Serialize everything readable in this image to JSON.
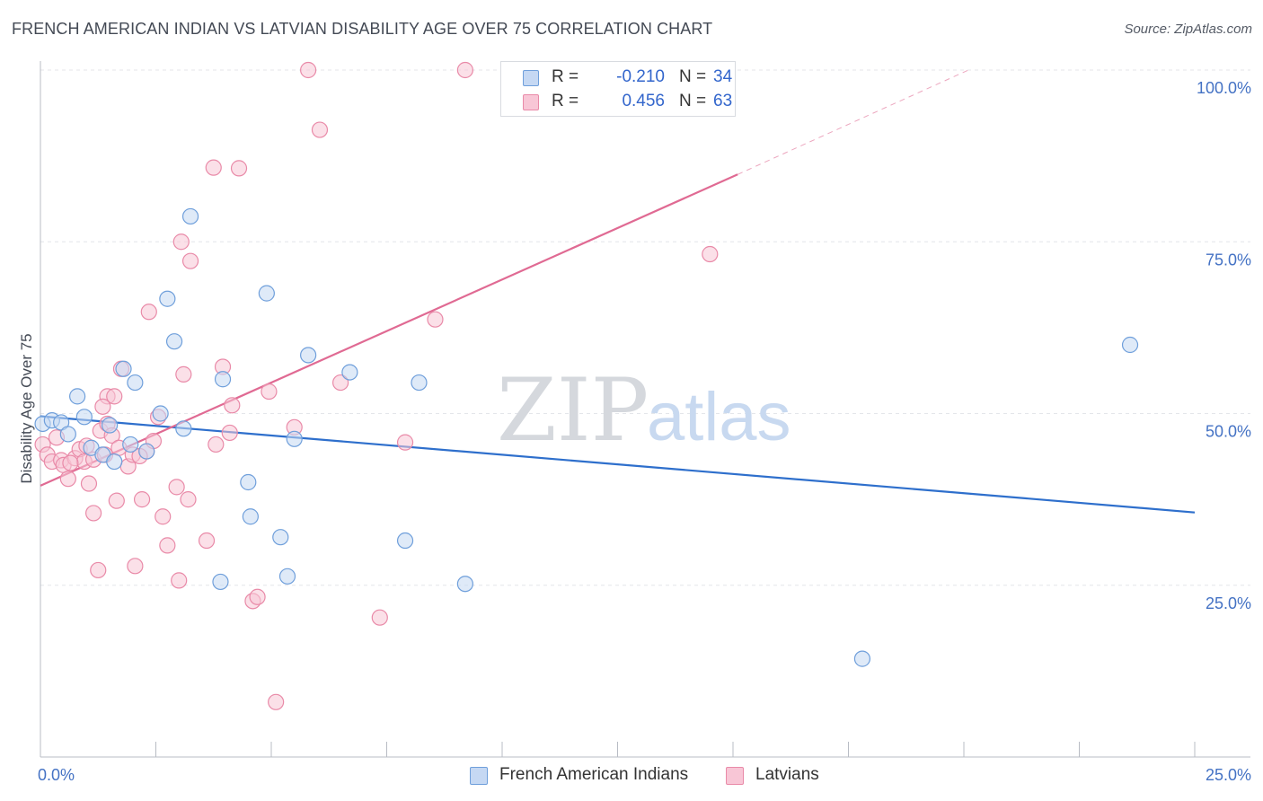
{
  "title": "FRENCH AMERICAN INDIAN VS LATVIAN DISABILITY AGE OVER 75 CORRELATION CHART",
  "source": "Source: ZipAtlas.com",
  "watermark": {
    "zip": "ZIP",
    "atlas": "atlas"
  },
  "colors": {
    "blue_fill": "#c5d8f3",
    "blue_stroke": "#6f9fdb",
    "blue_line": "#2e6fcc",
    "pink_fill": "#f8c6d6",
    "pink_stroke": "#e98aa8",
    "pink_line": "#e06a93",
    "grid": "#e4e6ea",
    "tick_text": "#4472c4"
  },
  "legend": {
    "series": [
      {
        "r_label": "R =",
        "r_value": "-0.210",
        "n_label": "N =",
        "n_value": "34"
      },
      {
        "r_label": "R =",
        "r_value": "0.456",
        "n_label": "N =",
        "n_value": "63"
      }
    ]
  },
  "chart_data": {
    "type": "scatter",
    "title": "FRENCH AMERICAN INDIAN VS LATVIAN DISABILITY AGE OVER 75 CORRELATION CHART",
    "xlabel": "",
    "ylabel": "Disability Age Over 75",
    "xlim": [
      0,
      25
    ],
    "ylim": [
      0,
      100
    ],
    "x_tick_labels": [
      "0.0%",
      "25.0%"
    ],
    "y_ticks": [
      25,
      50,
      75,
      100
    ],
    "y_tick_labels": [
      "25.0%",
      "50.0%",
      "75.0%",
      "100.0%"
    ],
    "grid": true,
    "legend_placement": "bottom",
    "series": [
      {
        "name": "French American Indians",
        "color": "#6f9fdb",
        "trend": {
          "x": [
            0,
            25
          ],
          "y": [
            49.6,
            35.6
          ],
          "style": "solid"
        },
        "points": [
          [
            0.05,
            48.5
          ],
          [
            0.25,
            49.0
          ],
          [
            0.45,
            48.7
          ],
          [
            0.6,
            47.0
          ],
          [
            0.8,
            52.5
          ],
          [
            0.95,
            49.5
          ],
          [
            1.1,
            45.0
          ],
          [
            1.35,
            44.0
          ],
          [
            1.5,
            48.3
          ],
          [
            1.6,
            43.0
          ],
          [
            1.8,
            56.5
          ],
          [
            2.05,
            54.5
          ],
          [
            2.3,
            44.5
          ],
          [
            2.6,
            50.0
          ],
          [
            2.75,
            66.7
          ],
          [
            2.9,
            60.5
          ],
          [
            3.1,
            47.8
          ],
          [
            3.25,
            78.7
          ],
          [
            3.9,
            25.5
          ],
          [
            3.95,
            55.0
          ],
          [
            4.5,
            40.0
          ],
          [
            4.55,
            35.0
          ],
          [
            4.9,
            67.5
          ],
          [
            5.2,
            32.0
          ],
          [
            5.35,
            26.3
          ],
          [
            5.5,
            46.3
          ],
          [
            5.8,
            58.5
          ],
          [
            6.7,
            56.0
          ],
          [
            7.9,
            31.5
          ],
          [
            8.2,
            54.5
          ],
          [
            9.2,
            25.2
          ],
          [
            17.8,
            14.3
          ],
          [
            23.6,
            60.0
          ],
          [
            1.95,
            45.5
          ]
        ]
      },
      {
        "name": "Latvians",
        "color": "#e98aa8",
        "trend": {
          "x": [
            0,
            15.1
          ],
          "y": [
            39.5,
            84.8
          ],
          "style": "solid",
          "extension": {
            "x": [
              15.1,
              20.1
            ],
            "y": [
              84.8,
              100.0
            ],
            "style": "dashed"
          }
        },
        "points": [
          [
            0.05,
            45.5
          ],
          [
            0.15,
            44.0
          ],
          [
            0.25,
            43.0
          ],
          [
            0.35,
            46.5
          ],
          [
            0.45,
            43.2
          ],
          [
            0.5,
            42.5
          ],
          [
            0.6,
            40.5
          ],
          [
            0.75,
            43.5
          ],
          [
            0.85,
            44.8
          ],
          [
            0.95,
            43.0
          ],
          [
            1.0,
            45.3
          ],
          [
            1.05,
            39.8
          ],
          [
            1.15,
            43.3
          ],
          [
            1.15,
            35.5
          ],
          [
            1.25,
            27.2
          ],
          [
            1.3,
            47.5
          ],
          [
            1.4,
            44.0
          ],
          [
            1.45,
            48.5
          ],
          [
            1.45,
            52.5
          ],
          [
            1.55,
            46.8
          ],
          [
            1.6,
            52.5
          ],
          [
            1.65,
            37.3
          ],
          [
            1.7,
            45.0
          ],
          [
            1.75,
            56.5
          ],
          [
            1.9,
            42.3
          ],
          [
            2.0,
            44.0
          ],
          [
            2.05,
            27.8
          ],
          [
            2.2,
            37.5
          ],
          [
            2.3,
            44.5
          ],
          [
            2.35,
            64.8
          ],
          [
            2.45,
            46.0
          ],
          [
            2.55,
            49.5
          ],
          [
            2.65,
            35.0
          ],
          [
            2.75,
            30.8
          ],
          [
            2.95,
            39.3
          ],
          [
            3.0,
            25.7
          ],
          [
            3.05,
            75.0
          ],
          [
            3.1,
            55.7
          ],
          [
            3.2,
            37.5
          ],
          [
            3.25,
            72.2
          ],
          [
            3.6,
            31.5
          ],
          [
            3.75,
            85.8
          ],
          [
            3.8,
            45.5
          ],
          [
            3.95,
            56.8
          ],
          [
            4.1,
            47.2
          ],
          [
            4.15,
            51.2
          ],
          [
            4.3,
            85.7
          ],
          [
            4.6,
            22.7
          ],
          [
            4.7,
            23.3
          ],
          [
            4.95,
            53.2
          ],
          [
            5.1,
            8.0
          ],
          [
            5.5,
            48.0
          ],
          [
            5.8,
            100.0
          ],
          [
            6.05,
            91.3
          ],
          [
            6.5,
            54.5
          ],
          [
            7.35,
            20.3
          ],
          [
            7.9,
            45.8
          ],
          [
            8.55,
            63.7
          ],
          [
            9.2,
            100.0
          ],
          [
            14.5,
            73.2
          ],
          [
            0.65,
            42.8
          ],
          [
            1.35,
            51.0
          ],
          [
            2.15,
            43.8
          ]
        ]
      }
    ]
  }
}
